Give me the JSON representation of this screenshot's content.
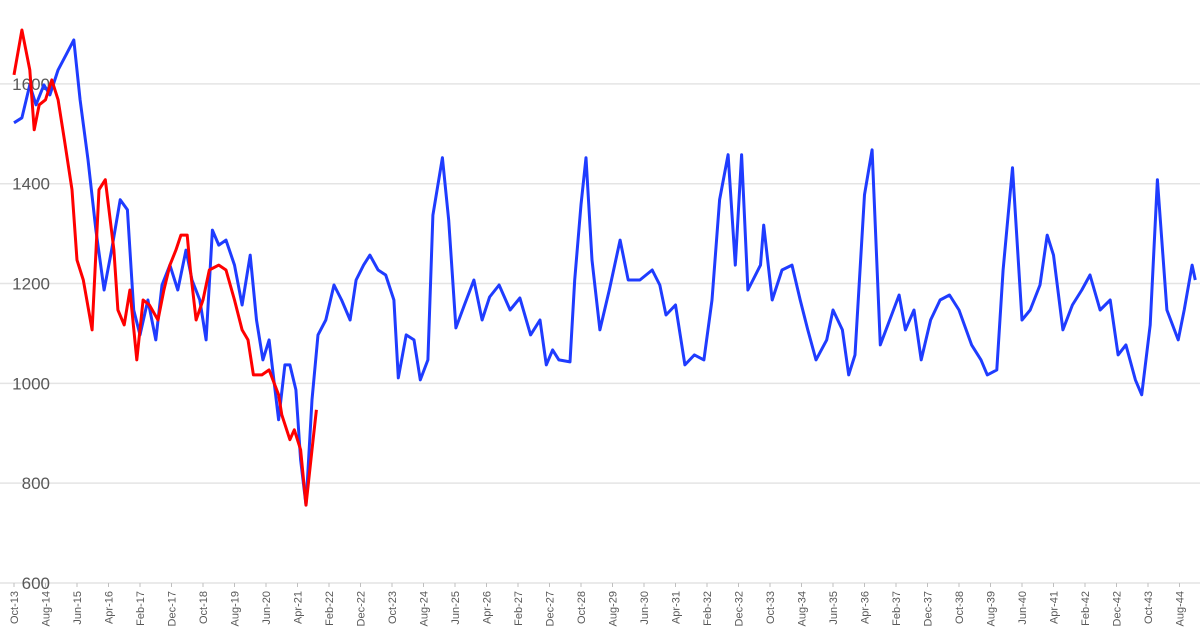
{
  "chart_data": {
    "type": "line",
    "xlim": [
      0,
      376
    ],
    "xticks": [
      {
        "value": 0,
        "label": "Oct-13"
      },
      {
        "value": 10,
        "label": "Aug-14"
      },
      {
        "value": 20,
        "label": "Jun-15"
      },
      {
        "value": 30,
        "label": "Apr-16"
      },
      {
        "value": 40,
        "label": "Feb-17"
      },
      {
        "value": 50,
        "label": "Dec-17"
      },
      {
        "value": 60,
        "label": "Oct-18"
      },
      {
        "value": 70,
        "label": "Aug-19"
      },
      {
        "value": 80,
        "label": "Jun-20"
      },
      {
        "value": 90,
        "label": "Apr-21"
      },
      {
        "value": 100,
        "label": "Feb-22"
      },
      {
        "value": 110,
        "label": "Dec-22"
      },
      {
        "value": 120,
        "label": "Oct-23"
      },
      {
        "value": 130,
        "label": "Aug-24"
      },
      {
        "value": 140,
        "label": "Jun-25"
      },
      {
        "value": 150,
        "label": "Apr-26"
      },
      {
        "value": 160,
        "label": "Feb-27"
      },
      {
        "value": 170,
        "label": "Dec-27"
      },
      {
        "value": 180,
        "label": "Oct-28"
      },
      {
        "value": 190,
        "label": "Aug-29"
      },
      {
        "value": 200,
        "label": "Jun-30"
      },
      {
        "value": 210,
        "label": "Apr-31"
      },
      {
        "value": 220,
        "label": "Feb-32"
      },
      {
        "value": 230,
        "label": "Dec-32"
      },
      {
        "value": 240,
        "label": "Oct-33"
      },
      {
        "value": 250,
        "label": "Aug-34"
      },
      {
        "value": 260,
        "label": "Jun-35"
      },
      {
        "value": 270,
        "label": "Apr-36"
      },
      {
        "value": 280,
        "label": "Feb-37"
      },
      {
        "value": 290,
        "label": "Dec-37"
      },
      {
        "value": 300,
        "label": "Oct-38"
      },
      {
        "value": 310,
        "label": "Aug-39"
      },
      {
        "value": 320,
        "label": "Jun-40"
      },
      {
        "value": 330,
        "label": "Apr-41"
      },
      {
        "value": 340,
        "label": "Feb-42"
      },
      {
        "value": 350,
        "label": "Dec-42"
      },
      {
        "value": 360,
        "label": "Oct-43"
      },
      {
        "value": 370,
        "label": "Aug-44"
      }
    ],
    "ylim": [
      600,
      1750
    ],
    "yticks": [
      600,
      800,
      1000,
      1200,
      1400,
      1600
    ],
    "grid": true,
    "series": [
      {
        "color": "#1f3cff",
        "x": [
          0,
          2.5,
          5,
          7,
          9.5,
          11.4,
          14,
          16.5,
          19,
          21,
          23.5,
          26,
          28.6,
          31,
          33.7,
          36,
          38,
          40,
          42.5,
          45,
          47,
          49.5,
          52,
          54.6,
          56.5,
          59,
          61,
          63,
          65,
          67.3,
          70,
          72.4,
          75,
          77,
          79,
          81,
          84,
          86,
          87.6,
          89.5,
          91,
          92.7,
          94.6,
          96.5,
          99,
          101.6,
          104,
          106.7,
          108.6,
          111,
          113,
          115.6,
          118,
          120.6,
          122,
          124.5,
          127,
          129,
          131.4,
          133,
          136,
          138,
          140.3,
          143,
          146,
          148.6,
          151,
          154,
          157.5,
          160.6,
          164,
          167,
          169,
          171,
          173,
          176.5,
          178,
          180,
          181.6,
          183.5,
          186,
          189,
          192.4,
          195,
          198.7,
          202.6,
          205,
          207,
          210,
          213,
          216,
          219,
          221.6,
          224,
          226.7,
          229,
          231,
          233,
          237,
          238,
          240.7,
          243.8,
          247,
          249.6,
          252,
          254.6,
          258,
          260,
          263,
          265,
          267,
          270,
          272.4,
          275,
          278,
          281,
          283,
          285.7,
          288,
          291,
          294,
          297,
          300,
          304,
          307,
          309,
          312,
          314,
          317,
          320,
          322.6,
          325.7,
          328,
          330,
          333,
          336,
          339,
          341.6,
          344.8,
          348,
          350.5,
          353,
          356,
          358,
          360.7,
          363,
          366,
          369.6,
          371.5,
          374,
          375
        ],
        "values": [
          1522,
          1532,
          1598,
          1558,
          1598,
          1578,
          1628,
          1658,
          1688,
          1568,
          1448,
          1307,
          1187,
          1267,
          1368,
          1348,
          1147,
          1097,
          1167,
          1087,
          1197,
          1237,
          1187,
          1267,
          1207,
          1167,
          1087,
          1307,
          1277,
          1287,
          1237,
          1157,
          1257,
          1127,
          1047,
          1087,
          927,
          1037,
          1037,
          987,
          847,
          756,
          967,
          1097,
          1127,
          1197,
          1167,
          1127,
          1207,
          1237,
          1257,
          1227,
          1217,
          1167,
          1011,
          1097,
          1087,
          1007,
          1047,
          1337,
          1452,
          1327,
          1111,
          1157,
          1207,
          1127,
          1173,
          1197,
          1147,
          1171,
          1097,
          1127,
          1037,
          1067,
          1047,
          1043,
          1207,
          1358,
          1452,
          1247,
          1107,
          1187,
          1287,
          1207,
          1207,
          1227,
          1197,
          1137,
          1157,
          1037,
          1057,
          1047,
          1167,
          1368,
          1458,
          1237,
          1458,
          1187,
          1237,
          1317,
          1167,
          1227,
          1237,
          1167,
          1107,
          1047,
          1087,
          1147,
          1107,
          1017,
          1057,
          1378,
          1468,
          1077,
          1127,
          1177,
          1107,
          1147,
          1047,
          1127,
          1167,
          1177,
          1147,
          1077,
          1047,
          1017,
          1027,
          1227,
          1432,
          1127,
          1147,
          1197,
          1297,
          1257,
          1107,
          1157,
          1187,
          1217,
          1147,
          1167,
          1057,
          1077,
          1007,
          977,
          1117,
          1408,
          1147,
          1087,
          1147,
          1237,
          1207
        ]
      },
      {
        "color": "#ff0000",
        "x": [
          0,
          2.5,
          5,
          6.4,
          8,
          10,
          12,
          14,
          16,
          18.4,
          20,
          22,
          24.8,
          27,
          29,
          31.7,
          33,
          35,
          36.8,
          39,
          41,
          43,
          45.7,
          47.6,
          49.5,
          51.4,
          53,
          55,
          56,
          57.8,
          60,
          62,
          65,
          67.3,
          70,
          72.4,
          74.3,
          76,
          78.7,
          81,
          84,
          85,
          87.6,
          89,
          91,
          92.7,
          94.6,
          96
        ],
        "values": [
          1618,
          1708,
          1628,
          1508,
          1558,
          1568,
          1608,
          1568,
          1488,
          1388,
          1247,
          1207,
          1107,
          1388,
          1408,
          1267,
          1147,
          1117,
          1187,
          1047,
          1167,
          1157,
          1127,
          1187,
          1237,
          1267,
          1297,
          1297,
          1227,
          1127,
          1167,
          1227,
          1237,
          1227,
          1167,
          1107,
          1087,
          1017,
          1017,
          1027,
          977,
          937,
          887,
          907,
          867,
          756,
          867,
          947
        ]
      }
    ]
  }
}
